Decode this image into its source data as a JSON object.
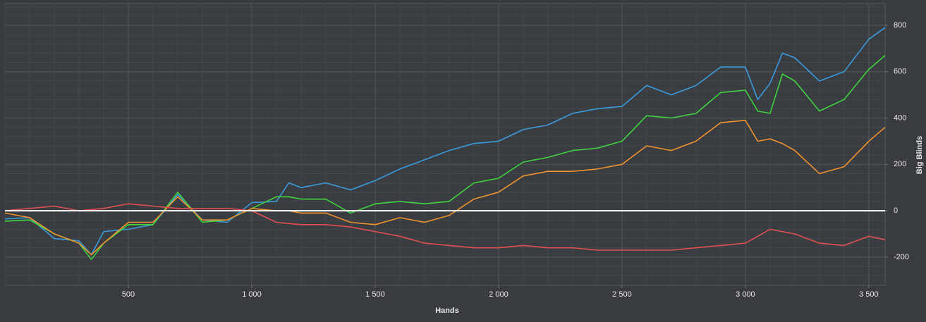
{
  "chart_data": {
    "type": "line",
    "xlabel": "Hands",
    "ylabel": "Big Blinds",
    "x": [
      0,
      100,
      200,
      300,
      350,
      400,
      500,
      600,
      700,
      800,
      900,
      1000,
      1100,
      1150,
      1200,
      1300,
      1400,
      1500,
      1600,
      1700,
      1800,
      1900,
      2000,
      2100,
      2200,
      2300,
      2400,
      2500,
      2600,
      2700,
      2800,
      2900,
      3000,
      3050,
      3100,
      3150,
      3200,
      3300,
      3400,
      3500,
      3566
    ],
    "series": [
      {
        "color": "#3b9bdc",
        "values": [
          -35,
          -30,
          -120,
          -130,
          -190,
          -90,
          -80,
          -60,
          70,
          -40,
          -50,
          35,
          40,
          120,
          100,
          120,
          90,
          130,
          180,
          220,
          260,
          290,
          300,
          350,
          370,
          420,
          440,
          450,
          540,
          500,
          540,
          620,
          620,
          480,
          550,
          680,
          660,
          560,
          600,
          740,
          790
        ]
      },
      {
        "color": "#3fd43f",
        "values": [
          -45,
          -40,
          -100,
          -140,
          -210,
          -140,
          -60,
          -60,
          80,
          -50,
          -40,
          10,
          60,
          60,
          50,
          50,
          -10,
          30,
          40,
          30,
          40,
          120,
          140,
          210,
          230,
          260,
          270,
          300,
          410,
          400,
          420,
          510,
          520,
          430,
          420,
          590,
          560,
          430,
          480,
          610,
          670
        ]
      },
      {
        "color": "#f0922e",
        "values": [
          -10,
          -30,
          -100,
          -140,
          -190,
          -140,
          -50,
          -50,
          60,
          -40,
          -40,
          10,
          0,
          0,
          -10,
          -10,
          -50,
          -60,
          -30,
          -50,
          -20,
          50,
          80,
          150,
          170,
          170,
          180,
          200,
          280,
          260,
          300,
          380,
          390,
          300,
          310,
          290,
          260,
          160,
          190,
          300,
          360
        ]
      },
      {
        "color": "#e05050",
        "values": [
          0,
          10,
          20,
          0,
          5,
          10,
          30,
          20,
          10,
          10,
          10,
          0,
          -50,
          -55,
          -60,
          -60,
          -70,
          -90,
          -110,
          -140,
          -150,
          -160,
          -160,
          -150,
          -160,
          -160,
          -170,
          -170,
          -170,
          -170,
          -160,
          -150,
          -140,
          -110,
          -80,
          -90,
          -100,
          -140,
          -150,
          -110,
          -125
        ]
      }
    ],
    "xlim": [
      0,
      3566
    ],
    "ylim": [
      -322,
      894
    ],
    "xticks": [
      500,
      {
        "value": 1000,
        "label": "1 000"
      },
      {
        "value": 1500,
        "label": "1 500"
      },
      {
        "value": 2000,
        "label": "2 000"
      },
      {
        "value": 2500,
        "label": "2 500"
      },
      {
        "value": 3000,
        "label": "3 000"
      },
      {
        "value": 3500,
        "label": "3 500"
      }
    ],
    "yticks": [
      -200,
      0,
      200,
      400,
      600,
      800
    ],
    "grid": true
  }
}
